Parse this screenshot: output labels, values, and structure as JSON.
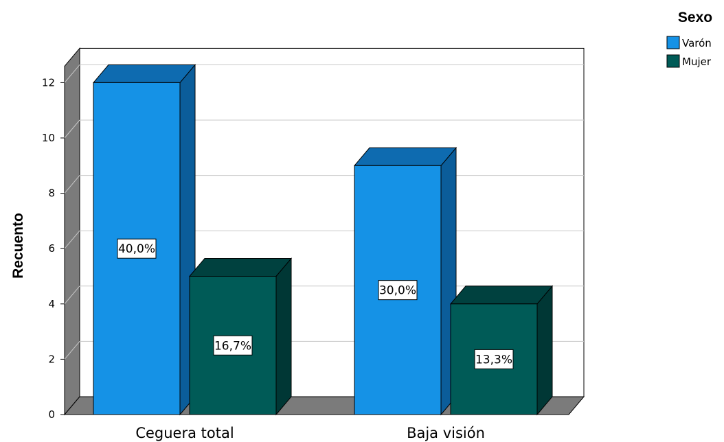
{
  "chart_data": {
    "type": "bar",
    "style": "3d-clustered",
    "categories": [
      "Ceguera total",
      "Baja visión"
    ],
    "ylabel": "Recuento",
    "ylim": [
      0,
      12
    ],
    "yticks": [
      "0",
      "2",
      "4",
      "6",
      "8",
      "10",
      "12"
    ],
    "grid": true,
    "legend": {
      "title": "Sexo",
      "position": "top-right"
    },
    "series": [
      {
        "name": "Varón",
        "values": [
          12,
          9
        ],
        "labels": [
          "40,0%",
          "30,0%"
        ],
        "color": "#1592e6",
        "side_color": "#0b5d9a",
        "top_color": "#0e6bb0"
      },
      {
        "name": "Mujer",
        "values": [
          5,
          4
        ],
        "labels": [
          "16,7%",
          "13,3%"
        ],
        "color": "#005b57",
        "side_color": "#003735",
        "top_color": "#00413f"
      }
    ]
  }
}
